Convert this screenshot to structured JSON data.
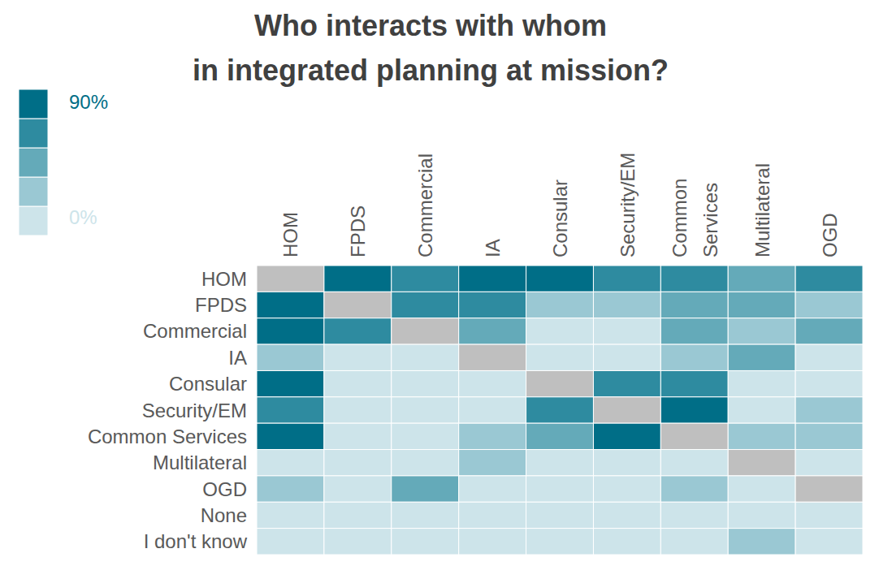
{
  "chart_data": {
    "type": "heatmap",
    "title": [
      "Who interacts with whom",
      "in integrated planning at mission?"
    ],
    "columns": [
      "HOM",
      "FPDS",
      "Commercial",
      "IA",
      "Consular",
      "Security/EM",
      "Common Services",
      "Multilateral",
      "OGD"
    ],
    "rows": [
      "HOM",
      "FPDS",
      "Commercial",
      "IA",
      "Consular",
      "Security/EM",
      "Common Services",
      "Multilateral",
      "OGD",
      "None",
      "I don't know"
    ],
    "cells": [
      [
        null,
        85,
        65,
        85,
        85,
        65,
        65,
        45,
        65
      ],
      [
        85,
        null,
        65,
        65,
        25,
        25,
        45,
        45,
        25
      ],
      [
        85,
        65,
        null,
        45,
        5,
        5,
        45,
        25,
        45
      ],
      [
        25,
        5,
        5,
        null,
        5,
        5,
        25,
        45,
        5
      ],
      [
        85,
        5,
        5,
        5,
        null,
        65,
        65,
        5,
        5
      ],
      [
        65,
        5,
        5,
        5,
        65,
        null,
        85,
        5,
        25
      ],
      [
        85,
        5,
        5,
        25,
        45,
        85,
        null,
        25,
        25
      ],
      [
        5,
        5,
        5,
        25,
        5,
        5,
        5,
        null,
        5
      ],
      [
        25,
        5,
        45,
        5,
        5,
        5,
        25,
        5,
        null
      ],
      [
        5,
        5,
        5,
        5,
        5,
        5,
        5,
        5,
        5
      ],
      [
        5,
        5,
        5,
        5,
        5,
        5,
        5,
        25,
        5
      ]
    ],
    "colorbar": {
      "range": [
        0,
        90
      ],
      "ticks": [
        {
          "value": 90,
          "label": "90%"
        },
        {
          "value": 0,
          "label": "0%"
        }
      ],
      "colors": [
        "#cde4ea",
        "#9ac8d3",
        "#64aab9",
        "#2e8ba0",
        "#006e87"
      ]
    },
    "missing_color": "#bfbfbf"
  }
}
